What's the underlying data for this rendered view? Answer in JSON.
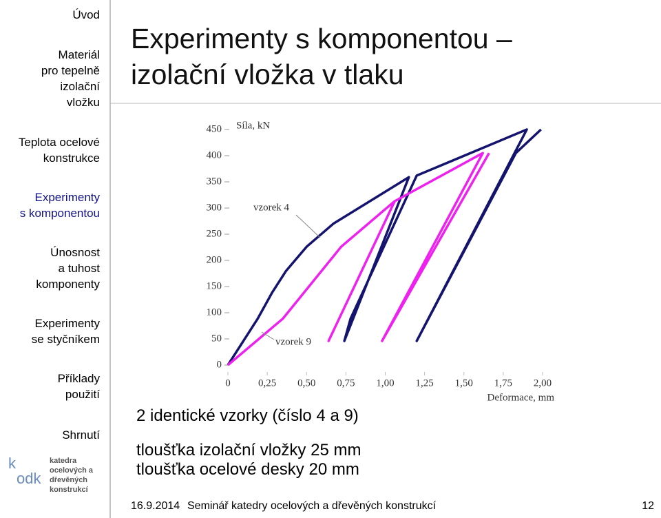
{
  "nav": {
    "items": [
      [
        "Úvod"
      ],
      [
        "Materiál",
        "pro tepelně",
        "izolační",
        "vložku"
      ],
      [
        "Teplota ocelové",
        "konstrukce"
      ],
      [
        "Experimenty",
        "s komponentou"
      ],
      [
        "Únosnost",
        "a tuhost",
        "komponenty"
      ],
      [
        "Experimenty",
        "se styčníkem"
      ],
      [
        "Příklady",
        "použití"
      ],
      [
        "Shrnutí"
      ]
    ]
  },
  "logo": {
    "letter": "k",
    "mark": "odk",
    "lines": [
      "katedra",
      "ocelových a",
      "dřevěných",
      "konstrukcí"
    ]
  },
  "header": {
    "title": [
      "Experimenty s komponentou –",
      "izolační vložka v tlaku"
    ]
  },
  "chart_data": {
    "type": "line",
    "y_label": "Síla, kN",
    "x_label": "Deformace, mm",
    "xlim": [
      0,
      2
    ],
    "ylim": [
      0,
      450
    ],
    "xticks": [
      0,
      {
        "value": 0.25,
        "label": "0,25"
      },
      {
        "value": 0.5,
        "label": "0,50"
      },
      {
        "value": 0.75,
        "label": "0,75"
      },
      {
        "value": 1,
        "label": "1,00"
      },
      {
        "value": 1.25,
        "label": "1,25"
      },
      {
        "value": 1.5,
        "label": "1,50"
      },
      {
        "value": 1.75,
        "label": "1,75"
      },
      {
        "value": 2,
        "label": "2,00"
      }
    ],
    "yticks": [
      0,
      50,
      100,
      150,
      200,
      250,
      300,
      350,
      400,
      450
    ],
    "series": [
      {
        "name": "vzorek 4",
        "color": "#14146e",
        "x": [
          0,
          0.19,
          0.28,
          0.37,
          0.5,
          0.67,
          1.15,
          0.74,
          0.78,
          1.2,
          1.9,
          1.2,
          1.83,
          1.99
        ],
        "values": [
          0,
          89,
          138,
          180,
          226,
          270,
          359,
          46,
          89,
          362,
          450,
          46,
          405,
          450
        ]
      },
      {
        "name": "vzorek 9",
        "color": "#ee22ee",
        "x": [
          0,
          0.35,
          0.72,
          1.06,
          0.64,
          1.06,
          1.62,
          0.98,
          1.66
        ],
        "values": [
          0,
          89,
          226,
          313,
          46,
          313,
          405,
          46,
          405
        ]
      }
    ]
  },
  "body": {
    "lines": [
      "2 identické vzorky (číslo 4 a 9)",
      "tloušťka izolační vložky 25 mm",
      "tloušťka ocelové desky 20 mm"
    ]
  },
  "footer": {
    "date": "16.9.2014",
    "text": "Seminář katedry ocelových a dřevěných konstrukcí",
    "page": "12"
  }
}
